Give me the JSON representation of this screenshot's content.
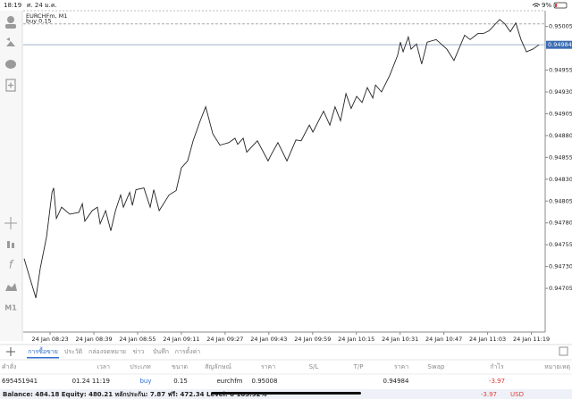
{
  "status_bar": {
    "time": "18:19",
    "date": "ศ. 24 ม.ค.",
    "battery": "9%"
  },
  "toolbar": {
    "timeframe": "M1"
  },
  "chart_data": {
    "type": "line",
    "title": "EURCHFm, M1",
    "color": "#222222",
    "x": [
      -9.5,
      -7.5,
      -5.2,
      -3.6,
      -1.3,
      0.7,
      1.3,
      2.3,
      4.2,
      7.2,
      10.5,
      11.8,
      12.7,
      15.4,
      17.3,
      18.3,
      20.3,
      22.2,
      23.9,
      25.8,
      26.8,
      29.1,
      30.1,
      31.4,
      34.3,
      36.6,
      37.9,
      39.9,
      43.5,
      46.1,
      48.0,
      50.3,
      52.3,
      54.9,
      56.9,
      59.5,
      62.1,
      65.4,
      67.6,
      68.6,
      70.6,
      71.9,
      75.8,
      79.7,
      81.0,
      83.3,
      86.6,
      89.9,
      91.8,
      94.8,
      96.1,
      100.0,
      102.3,
      104.2,
      106.2,
      108.2,
      110.1,
      112.1,
      114.1,
      116.0,
      118.0,
      119.0,
      121.2,
      124.2,
      127.1,
      128.1,
      129.1,
      131.0,
      132.0,
      134.0,
      135.9,
      137.9,
      141.2,
      145.1,
      147.7,
      151.6,
      153.6,
      156.5,
      158.5,
      160.5,
      164.4,
      166.3,
      168.3,
      170.3,
      172.2,
      174.2,
      176.5,
      178.8
    ],
    "values": [
      0.94739,
      0.94718,
      0.94694,
      0.94728,
      0.94764,
      0.94815,
      0.9482,
      0.94785,
      0.94798,
      0.9479,
      0.94792,
      0.94802,
      0.94782,
      0.94794,
      0.94798,
      0.94779,
      0.94794,
      0.94771,
      0.94794,
      0.94812,
      0.94798,
      0.94815,
      0.948,
      0.94818,
      0.9482,
      0.94798,
      0.94818,
      0.94794,
      0.94812,
      0.94817,
      0.94843,
      0.94851,
      0.94874,
      0.94897,
      0.94913,
      0.94882,
      0.94869,
      0.94872,
      0.94877,
      0.9487,
      0.94877,
      0.94861,
      0.94874,
      0.94851,
      0.94859,
      0.94872,
      0.94851,
      0.94875,
      0.94874,
      0.94892,
      0.94884,
      0.94908,
      0.94892,
      0.94913,
      0.94897,
      0.94928,
      0.94911,
      0.94925,
      0.94918,
      0.94935,
      0.94923,
      0.94938,
      0.9493,
      0.94949,
      0.94972,
      0.94987,
      0.94976,
      0.94993,
      0.94979,
      0.94985,
      0.94962,
      0.94987,
      0.9499,
      0.94979,
      0.94966,
      0.94995,
      0.9499,
      0.94997,
      0.94997,
      0.95,
      0.95013,
      0.95008,
      0.94999,
      0.95009,
      0.9499,
      0.94976,
      0.94979,
      0.94984
    ],
    "xlim": [
      -9.5,
      180.4
    ],
    "xticks": [
      {
        "value": 0,
        "label": "24 Jan 08:23"
      },
      {
        "value": 16,
        "label": "24 Jan 08:39"
      },
      {
        "value": 32,
        "label": "24 Jan 08:55"
      },
      {
        "value": 48,
        "label": "24 Jan 09:11"
      },
      {
        "value": 64,
        "label": "24 Jan 09:27"
      },
      {
        "value": 80,
        "label": "24 Jan 09:43"
      },
      {
        "value": 96,
        "label": "24 Jan 09:59"
      },
      {
        "value": 112,
        "label": "24 Jan 10:15"
      },
      {
        "value": 128,
        "label": "24 Jan 10:31"
      },
      {
        "value": 144,
        "label": "24 Jan 10:47"
      },
      {
        "value": 160,
        "label": "24 Jan 11:03"
      },
      {
        "value": 176,
        "label": "24 Jan 11:19"
      }
    ],
    "ylim": [
      0.94657,
      0.95021
    ],
    "yticks": [
      0.95005,
      0.94955,
      {
        "value": 0.9493,
        "label": "0.94930"
      },
      0.94905,
      {
        "value": 0.9488,
        "label": "0.94880"
      },
      0.94855,
      {
        "value": 0.9483,
        "label": "0.94830"
      },
      0.94805,
      {
        "value": 0.9478,
        "label": "0.94780"
      },
      0.94755,
      {
        "value": 0.9473,
        "label": "0.94730"
      },
      0.94705
    ],
    "current_price": 0.94984,
    "order_line": {
      "label": "buy 0.15",
      "value": 0.95008
    }
  },
  "tabs": [
    "การซื้อขาย",
    "ประวัติ",
    "กล่องจดหมาย",
    "ข่าว",
    "บันทึก",
    "การตั้งค่า"
  ],
  "table": {
    "headers": [
      "คำสั่ง",
      "เวลา",
      "ประเภท",
      "ขนาด",
      "สัญลักษณ์",
      "ราคา",
      "S/L",
      "T/P",
      "ราคา",
      "Swap",
      "กำไร",
      "หมายเหตุ"
    ],
    "rows": [
      {
        "order": "695451941",
        "time": "01.24 11:19",
        "type": "buy",
        "size": "0.15",
        "symbol": "eurchfm",
        "open_price": "0.95008",
        "price": "0.94984",
        "profit": "-3.97"
      }
    ]
  },
  "balance": {
    "summary": "Balance: 484.18 Equity: 480.21 หลักประกัน: 7.87 ฟรี: 472.34 Level: 6 103.92%",
    "profit": "-3.97",
    "currency": "USD"
  }
}
